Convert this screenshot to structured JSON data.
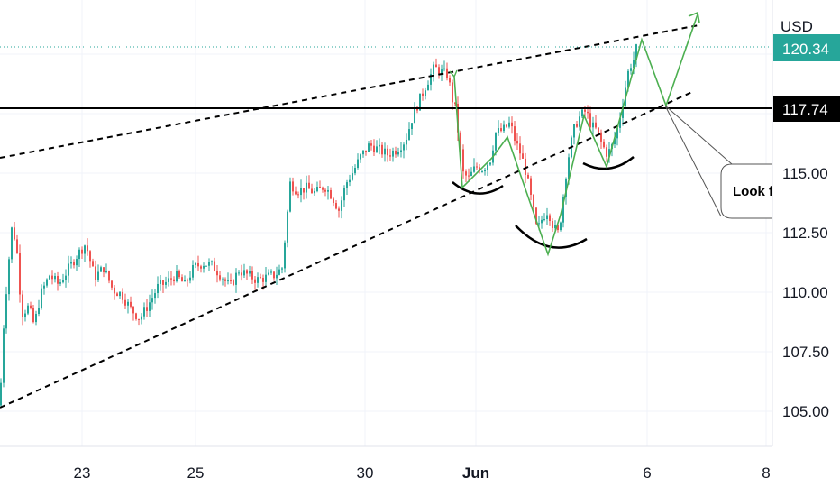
{
  "chart_data": {
    "type": "candlestick",
    "currency_label": "USD",
    "x_tick_labels": [
      "23",
      "25",
      "30",
      "Jun",
      "6",
      "8"
    ],
    "y_tick_labels": [
      "115.00",
      "112.50",
      "110.00",
      "107.50",
      "105.00"
    ],
    "y_range": [
      103.5,
      122.0
    ],
    "last_price": {
      "value": 120.34,
      "label": "120.34",
      "color": "#26a69a"
    },
    "level": {
      "value": 117.74,
      "label": "117.74",
      "color": "#000000"
    },
    "annotation_text": "Look fo",
    "colors": {
      "up": "#26a69a",
      "down": "#ef5350",
      "projection": "#4caf50",
      "trendline": "#000000"
    },
    "price_path": [
      {
        "t": 0,
        "price": 105.2
      },
      {
        "t": 3,
        "price": 108.0
      },
      {
        "t": 8,
        "price": 110.5
      },
      {
        "t": 13,
        "price": 112.5
      },
      {
        "t": 18,
        "price": 112.0
      },
      {
        "t": 24,
        "price": 109.0
      },
      {
        "t": 32,
        "price": 109.3
      },
      {
        "t": 38,
        "price": 108.5
      },
      {
        "t": 45,
        "price": 109.8
      },
      {
        "t": 55,
        "price": 110.6
      },
      {
        "t": 65,
        "price": 110.2
      },
      {
        "t": 75,
        "price": 110.8
      },
      {
        "t": 85,
        "price": 111.4
      },
      {
        "t": 95,
        "price": 111.9
      },
      {
        "t": 105,
        "price": 110.5
      },
      {
        "t": 115,
        "price": 110.9
      },
      {
        "t": 125,
        "price": 110.0
      },
      {
        "t": 135,
        "price": 109.8
      },
      {
        "t": 145,
        "price": 109.2
      },
      {
        "t": 155,
        "price": 108.8
      },
      {
        "t": 165,
        "price": 109.4
      },
      {
        "t": 175,
        "price": 110.1
      },
      {
        "t": 185,
        "price": 110.3
      },
      {
        "t": 195,
        "price": 110.6
      },
      {
        "t": 205,
        "price": 110.2
      },
      {
        "t": 215,
        "price": 110.9
      },
      {
        "t": 225,
        "price": 111.1
      },
      {
        "t": 235,
        "price": 111.0
      },
      {
        "t": 245,
        "price": 110.6
      },
      {
        "t": 255,
        "price": 110.1
      },
      {
        "t": 265,
        "price": 110.8
      },
      {
        "t": 275,
        "price": 110.6
      },
      {
        "t": 285,
        "price": 110.4
      },
      {
        "t": 295,
        "price": 110.5
      },
      {
        "t": 305,
        "price": 110.6
      },
      {
        "t": 313,
        "price": 110.9
      },
      {
        "t": 318,
        "price": 112.8
      },
      {
        "t": 322,
        "price": 114.4
      },
      {
        "t": 330,
        "price": 114.1
      },
      {
        "t": 340,
        "price": 114.2
      },
      {
        "t": 350,
        "price": 114.0
      },
      {
        "t": 360,
        "price": 114.3
      },
      {
        "t": 368,
        "price": 113.9
      },
      {
        "t": 376,
        "price": 113.3
      },
      {
        "t": 384,
        "price": 114.4
      },
      {
        "t": 392,
        "price": 114.9
      },
      {
        "t": 400,
        "price": 115.5
      },
      {
        "t": 410,
        "price": 116.0
      },
      {
        "t": 420,
        "price": 115.8
      },
      {
        "t": 430,
        "price": 115.6
      },
      {
        "t": 440,
        "price": 115.8
      },
      {
        "t": 450,
        "price": 116.2
      },
      {
        "t": 458,
        "price": 117.2
      },
      {
        "t": 466,
        "price": 117.9
      },
      {
        "t": 474,
        "price": 118.6
      },
      {
        "t": 482,
        "price": 119.2
      },
      {
        "t": 490,
        "price": 119.0
      },
      {
        "t": 497,
        "price": 118.9
      },
      {
        "t": 501,
        "price": 118.0
      },
      {
        "t": 505,
        "price": 117.5
      },
      {
        "t": 510,
        "price": 116.0
      },
      {
        "t": 514,
        "price": 114.8
      },
      {
        "t": 520,
        "price": 114.6
      },
      {
        "t": 528,
        "price": 115.1
      },
      {
        "t": 536,
        "price": 115.0
      },
      {
        "t": 544,
        "price": 115.4
      },
      {
        "t": 550,
        "price": 116.5
      },
      {
        "t": 558,
        "price": 116.6
      },
      {
        "t": 566,
        "price": 116.9
      },
      {
        "t": 572,
        "price": 116.1
      },
      {
        "t": 578,
        "price": 115.6
      },
      {
        "t": 584,
        "price": 114.8
      },
      {
        "t": 590,
        "price": 113.6
      },
      {
        "t": 596,
        "price": 112.4
      },
      {
        "t": 602,
        "price": 113.0
      },
      {
        "t": 608,
        "price": 113.3
      },
      {
        "t": 614,
        "price": 112.6
      },
      {
        "t": 620,
        "price": 112.3
      },
      {
        "t": 624,
        "price": 113.6
      },
      {
        "t": 628,
        "price": 114.8
      },
      {
        "t": 632,
        "price": 115.8
      },
      {
        "t": 638,
        "price": 116.8
      },
      {
        "t": 644,
        "price": 117.2
      },
      {
        "t": 650,
        "price": 117.4
      },
      {
        "t": 656,
        "price": 116.8
      },
      {
        "t": 662,
        "price": 116.6
      },
      {
        "t": 668,
        "price": 116.0
      },
      {
        "t": 674,
        "price": 115.6
      },
      {
        "t": 680,
        "price": 116.0
      },
      {
        "t": 686,
        "price": 116.8
      },
      {
        "t": 692,
        "price": 118.0
      },
      {
        "t": 698,
        "price": 119.2
      },
      {
        "t": 704,
        "price": 119.6
      },
      {
        "t": 708,
        "price": 120.34
      }
    ]
  }
}
